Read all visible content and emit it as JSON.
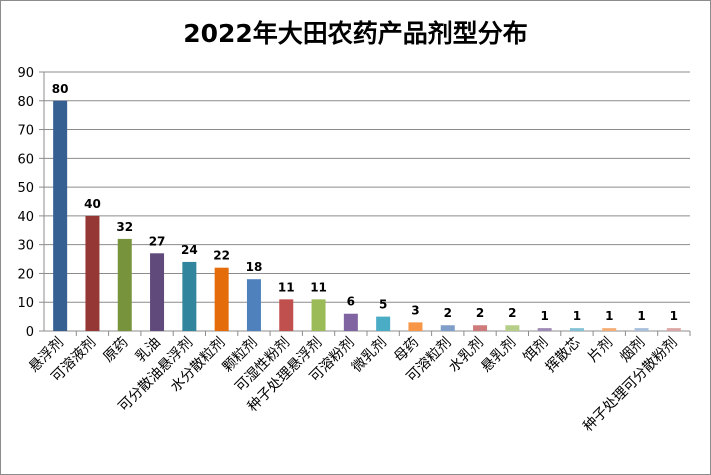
{
  "chart_data": {
    "type": "bar",
    "title": "2022年大田农药产品剂型分布",
    "xlabel": "",
    "ylabel": "",
    "ylim": [
      0,
      90
    ],
    "yticks": [
      0,
      10,
      20,
      30,
      40,
      50,
      60,
      70,
      80,
      90
    ],
    "grid": true,
    "legend": "none",
    "categories": [
      "悬浮剂",
      "可溶液剂",
      "原药",
      "乳油",
      "可分散油悬浮剂",
      "水分散粒剂",
      "颗粒剂",
      "可湿性粉剂",
      "种子处理悬浮剂",
      "可溶粉剂",
      "微乳剂",
      "母药",
      "可溶粒剂",
      "水乳剂",
      "悬乳剂",
      "饵剂",
      "挥散芯",
      "片剂",
      "烟剂",
      "种子处理可分散粉剂"
    ],
    "values": [
      80,
      40,
      32,
      27,
      24,
      22,
      18,
      11,
      11,
      6,
      5,
      3,
      2,
      2,
      2,
      1,
      1,
      1,
      1,
      1
    ],
    "colors": [
      "#376092",
      "#953735",
      "#77933c",
      "#604a7b",
      "#31859c",
      "#e46c0a",
      "#4f81bd",
      "#c0504d",
      "#9bbb59",
      "#8064a2",
      "#4bacc6",
      "#f79646",
      "#7f9ec9",
      "#cd7c7b",
      "#b6cf88",
      "#9f8bb5",
      "#83c2d5",
      "#f5ad76",
      "#a8bfdc",
      "#dba7a6"
    ]
  }
}
